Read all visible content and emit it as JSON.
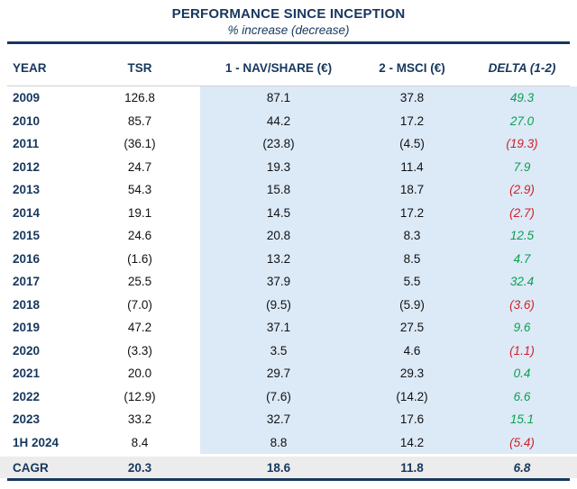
{
  "colors": {
    "navy": "#17375e",
    "text": "#111111",
    "positive": "#0aa04e",
    "negative": "#d02028",
    "shade_blue": "#dce9f7",
    "shade_gray": "#ececec",
    "separator": "#cfcfcf"
  },
  "header": {
    "title": "PERFORMANCE SINCE INCEPTION",
    "subtitle": "% increase (decrease)"
  },
  "table": {
    "columns": [
      "YEAR",
      "TSR",
      "1 - NAV/SHARE (€)",
      "2 - MSCI (€)",
      "DELTA (1-2)"
    ],
    "rows": [
      {
        "year": "2009",
        "tsr": "126.8",
        "nav_share": "87.1",
        "msci": "37.8",
        "delta": "49.3"
      },
      {
        "year": "2010",
        "tsr": "85.7",
        "nav_share": "44.2",
        "msci": "17.2",
        "delta": "27.0"
      },
      {
        "year": "2011",
        "tsr": "(36.1)",
        "nav_share": "(23.8)",
        "msci": "(4.5)",
        "delta": "(19.3)"
      },
      {
        "year": "2012",
        "tsr": "24.7",
        "nav_share": "19.3",
        "msci": "11.4",
        "delta": "7.9"
      },
      {
        "year": "2013",
        "tsr": "54.3",
        "nav_share": "15.8",
        "msci": "18.7",
        "delta": "(2.9)"
      },
      {
        "year": "2014",
        "tsr": "19.1",
        "nav_share": "14.5",
        "msci": "17.2",
        "delta": "(2.7)"
      },
      {
        "year": "2015",
        "tsr": "24.6",
        "nav_share": "20.8",
        "msci": "8.3",
        "delta": "12.5"
      },
      {
        "year": "2016",
        "tsr": "(1.6)",
        "nav_share": "13.2",
        "msci": "8.5",
        "delta": "4.7"
      },
      {
        "year": "2017",
        "tsr": "25.5",
        "nav_share": "37.9",
        "msci": "5.5",
        "delta": "32.4"
      },
      {
        "year": "2018",
        "tsr": "(7.0)",
        "nav_share": "(9.5)",
        "msci": "(5.9)",
        "delta": "(3.6)"
      },
      {
        "year": "2019",
        "tsr": "47.2",
        "nav_share": "37.1",
        "msci": "27.5",
        "delta": "9.6"
      },
      {
        "year": "2020",
        "tsr": "(3.3)",
        "nav_share": "3.5",
        "msci": "4.6",
        "delta": "(1.1)"
      },
      {
        "year": "2021",
        "tsr": "20.0",
        "nav_share": "29.7",
        "msci": "29.3",
        "delta": "0.4"
      },
      {
        "year": "2022",
        "tsr": "(12.9)",
        "nav_share": "(7.6)",
        "msci": "(14.2)",
        "delta": "6.6"
      },
      {
        "year": "2023",
        "tsr": "33.2",
        "nav_share": "32.7",
        "msci": "17.6",
        "delta": "15.1"
      },
      {
        "year": "1H 2024",
        "tsr": "8.4",
        "nav_share": "8.8",
        "msci": "14.2",
        "delta": "(5.4)"
      }
    ],
    "summary": {
      "label": "CAGR",
      "tsr": "20.3",
      "nav_share": "18.6",
      "msci": "11.8",
      "delta": "6.8"
    }
  },
  "chart_data": {
    "type": "table",
    "title": "PERFORMANCE SINCE INCEPTION",
    "subtitle": "% increase (decrease)",
    "columns": [
      "YEAR",
      "TSR",
      "1 - NAV/SHARE (€)",
      "2 - MSCI (€)",
      "DELTA (1-2)"
    ],
    "categories": [
      "2009",
      "2010",
      "2011",
      "2012",
      "2013",
      "2014",
      "2015",
      "2016",
      "2017",
      "2018",
      "2019",
      "2020",
      "2021",
      "2022",
      "2023",
      "1H 2024"
    ],
    "series": [
      {
        "name": "TSR",
        "values": [
          126.8,
          85.7,
          -36.1,
          24.7,
          54.3,
          19.1,
          24.6,
          -1.6,
          25.5,
          -7.0,
          47.2,
          -3.3,
          20.0,
          -12.9,
          33.2,
          8.4
        ]
      },
      {
        "name": "1 - NAV/SHARE (€)",
        "values": [
          87.1,
          44.2,
          -23.8,
          19.3,
          15.8,
          14.5,
          20.8,
          13.2,
          37.9,
          -9.5,
          37.1,
          3.5,
          29.7,
          -7.6,
          32.7,
          8.8
        ]
      },
      {
        "name": "2 - MSCI (€)",
        "values": [
          37.8,
          17.2,
          -4.5,
          11.4,
          18.7,
          17.2,
          8.3,
          8.5,
          5.5,
          -5.9,
          27.5,
          4.6,
          29.3,
          -14.2,
          17.6,
          14.2
        ]
      },
      {
        "name": "DELTA (1-2)",
        "values": [
          49.3,
          27.0,
          -19.3,
          7.9,
          -2.9,
          -2.7,
          12.5,
          4.7,
          32.4,
          -3.6,
          9.6,
          -1.1,
          0.4,
          6.6,
          15.1,
          -5.4
        ]
      }
    ],
    "summary_row": {
      "label": "CAGR",
      "TSR": 20.3,
      "NAV/SHARE": 18.6,
      "MSCI": 11.8,
      "DELTA": 6.8
    },
    "notes": "Negative values shown in parentheses; DELTA column green when positive, red when negative"
  }
}
